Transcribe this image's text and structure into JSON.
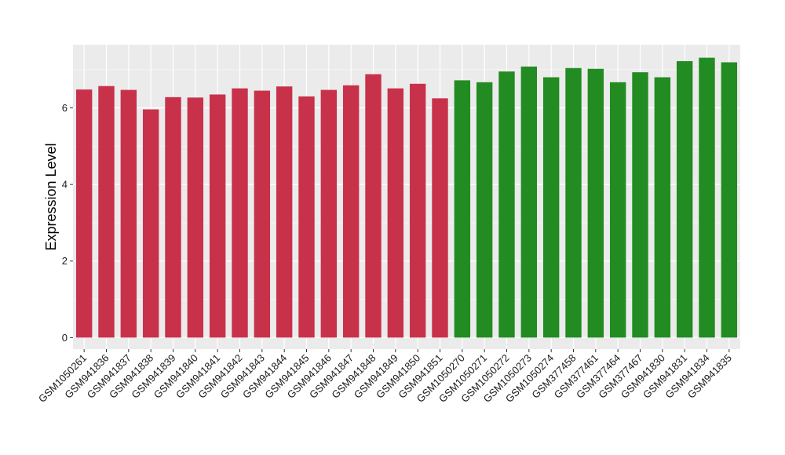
{
  "chart_data": {
    "type": "bar",
    "title": "",
    "xlabel": "",
    "ylabel": "Expression Level",
    "ylim": [
      -0.3,
      7.65
    ],
    "yticks": [
      0,
      2,
      4,
      6
    ],
    "grid": true,
    "legend": "none",
    "colors": {
      "panel_bg": "#ebebeb",
      "grid_major": "#ffffff",
      "grid_minor": "#f4f4f4",
      "group_a": "#c8314a",
      "group_b": "#228b22"
    },
    "categories": [
      "GSM1050261",
      "GSM941836",
      "GSM941837",
      "GSM941838",
      "GSM941839",
      "GSM941840",
      "GSM941841",
      "GSM941842",
      "GSM941843",
      "GSM941844",
      "GSM941845",
      "GSM941846",
      "GSM941847",
      "GSM941848",
      "GSM941849",
      "GSM941850",
      "GSM941851",
      "GSM1050270",
      "GSM1050271",
      "GSM1050272",
      "GSM1050273",
      "GSM1050274",
      "GSM377458",
      "GSM377461",
      "GSM377464",
      "GSM377467",
      "GSM941830",
      "GSM941831",
      "GSM941834",
      "GSM941835"
    ],
    "values": [
      6.48,
      6.57,
      6.47,
      5.96,
      6.28,
      6.27,
      6.35,
      6.51,
      6.45,
      6.56,
      6.3,
      6.47,
      6.59,
      6.88,
      6.51,
      6.63,
      6.25,
      6.72,
      6.67,
      6.95,
      7.08,
      6.8,
      7.04,
      7.02,
      6.67,
      6.93,
      6.8,
      7.22,
      7.31,
      7.19
    ],
    "groups": [
      "a",
      "a",
      "a",
      "a",
      "a",
      "a",
      "a",
      "a",
      "a",
      "a",
      "a",
      "a",
      "a",
      "a",
      "a",
      "a",
      "a",
      "b",
      "b",
      "b",
      "b",
      "b",
      "b",
      "b",
      "b",
      "b",
      "b",
      "b",
      "b",
      "b"
    ]
  }
}
